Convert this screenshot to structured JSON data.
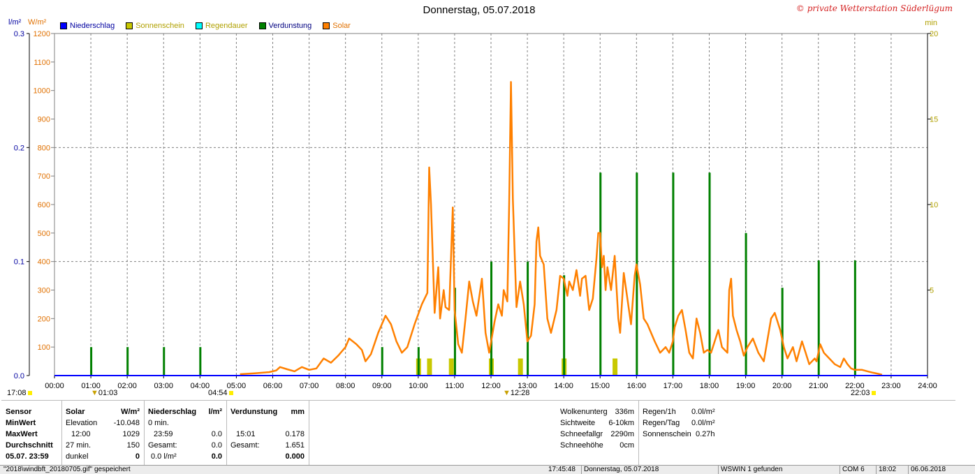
{
  "title": "Donnerstag, 05.07.2018",
  "watermark": "© private Wetterstation Süderlügum",
  "units": {
    "left_precip": "l/m²",
    "left_solar": "W/m²",
    "right_min": "min"
  },
  "legend": [
    {
      "label": "Niederschlag",
      "color": "#0000ff",
      "text_color": "#0000a0"
    },
    {
      "label": "Sonnenschein",
      "color": "#c8c800",
      "text_color": "#b0a000"
    },
    {
      "label": "Regendauer",
      "color": "#00ffff",
      "text_color": "#b0a000"
    },
    {
      "label": "Verdunstung",
      "color": "#008000",
      "text_color": "#000080"
    },
    {
      "label": "Solar",
      "color": "#ff8000",
      "text_color": "#e07000"
    }
  ],
  "markers": {
    "sunrise_left": "17:08",
    "sunrise": "04:54",
    "moon1": "01:03",
    "moon2": "12:28",
    "sunset": "22:03"
  },
  "chart_data": {
    "type": "line",
    "x_ticks": [
      "00:00",
      "01:00",
      "02:00",
      "03:00",
      "04:00",
      "05:00",
      "06:00",
      "07:00",
      "08:00",
      "09:00",
      "10:00",
      "11:00",
      "12:00",
      "13:00",
      "14:00",
      "15:00",
      "16:00",
      "17:00",
      "18:00",
      "19:00",
      "20:00",
      "21:00",
      "22:00",
      "23:00",
      "24:00"
    ],
    "xlim": [
      0,
      24
    ],
    "y_axes": {
      "precip": {
        "ylim": [
          0,
          0.3
        ],
        "ticks": [
          "0.0",
          "0.1",
          "0.2",
          "0.3"
        ],
        "tick_values": [
          0,
          0.1,
          0.2,
          0.3
        ],
        "color": "#0000a0"
      },
      "solar": {
        "ylim": [
          0,
          1200
        ],
        "ticks": [
          100,
          200,
          300,
          400,
          500,
          600,
          700,
          800,
          900,
          1000,
          1100,
          1200
        ],
        "color": "#e07000"
      },
      "minutes": {
        "ylim": [
          0,
          20
        ],
        "ticks": [
          5,
          10,
          15,
          20
        ],
        "color": "#b0a000"
      }
    },
    "series": [
      {
        "name": "Solar",
        "color": "#ff8000",
        "points": [
          [
            5.1,
            5
          ],
          [
            5.5,
            8
          ],
          [
            5.9,
            12
          ],
          [
            6.1,
            18
          ],
          [
            6.2,
            30
          ],
          [
            6.4,
            22
          ],
          [
            6.6,
            15
          ],
          [
            6.8,
            30
          ],
          [
            7.0,
            20
          ],
          [
            7.2,
            25
          ],
          [
            7.4,
            60
          ],
          [
            7.6,
            45
          ],
          [
            7.8,
            70
          ],
          [
            8.0,
            100
          ],
          [
            8.1,
            130
          ],
          [
            8.3,
            110
          ],
          [
            8.45,
            90
          ],
          [
            8.55,
            50
          ],
          [
            8.7,
            75
          ],
          [
            8.9,
            150
          ],
          [
            9.1,
            210
          ],
          [
            9.25,
            180
          ],
          [
            9.4,
            120
          ],
          [
            9.55,
            80
          ],
          [
            9.7,
            100
          ],
          [
            9.9,
            180
          ],
          [
            10.1,
            250
          ],
          [
            10.25,
            290
          ],
          [
            10.3,
            730
          ],
          [
            10.35,
            600
          ],
          [
            10.45,
            220
          ],
          [
            10.55,
            380
          ],
          [
            10.6,
            200
          ],
          [
            10.7,
            300
          ],
          [
            10.75,
            240
          ],
          [
            10.85,
            230
          ],
          [
            10.95,
            590
          ],
          [
            11.0,
            230
          ],
          [
            11.1,
            110
          ],
          [
            11.2,
            80
          ],
          [
            11.3,
            200
          ],
          [
            11.4,
            330
          ],
          [
            11.5,
            260
          ],
          [
            11.6,
            210
          ],
          [
            11.75,
            340
          ],
          [
            11.85,
            150
          ],
          [
            11.95,
            80
          ],
          [
            12.1,
            190
          ],
          [
            12.2,
            250
          ],
          [
            12.3,
            210
          ],
          [
            12.35,
            300
          ],
          [
            12.45,
            260
          ],
          [
            12.5,
            600
          ],
          [
            12.55,
            1030
          ],
          [
            12.6,
            620
          ],
          [
            12.7,
            240
          ],
          [
            12.8,
            330
          ],
          [
            12.9,
            250
          ],
          [
            13.0,
            120
          ],
          [
            13.1,
            140
          ],
          [
            13.2,
            250
          ],
          [
            13.25,
            470
          ],
          [
            13.3,
            520
          ],
          [
            13.35,
            420
          ],
          [
            13.45,
            390
          ],
          [
            13.55,
            200
          ],
          [
            13.65,
            150
          ],
          [
            13.8,
            230
          ],
          [
            13.9,
            350
          ],
          [
            14.0,
            340
          ],
          [
            14.1,
            280
          ],
          [
            14.15,
            330
          ],
          [
            14.25,
            300
          ],
          [
            14.35,
            370
          ],
          [
            14.45,
            280
          ],
          [
            14.5,
            340
          ],
          [
            14.6,
            350
          ],
          [
            14.7,
            230
          ],
          [
            14.8,
            270
          ],
          [
            14.9,
            410
          ],
          [
            14.95,
            500
          ],
          [
            15.0,
            500
          ],
          [
            15.05,
            380
          ],
          [
            15.1,
            420
          ],
          [
            15.15,
            300
          ],
          [
            15.2,
            380
          ],
          [
            15.3,
            300
          ],
          [
            15.4,
            420
          ],
          [
            15.5,
            200
          ],
          [
            15.55,
            150
          ],
          [
            15.65,
            360
          ],
          [
            15.75,
            270
          ],
          [
            15.85,
            180
          ],
          [
            15.95,
            350
          ],
          [
            16.0,
            390
          ],
          [
            16.1,
            320
          ],
          [
            16.2,
            200
          ],
          [
            16.3,
            180
          ],
          [
            16.5,
            120
          ],
          [
            16.65,
            80
          ],
          [
            16.8,
            100
          ],
          [
            16.9,
            80
          ],
          [
            17.0,
            120
          ],
          [
            17.05,
            170
          ],
          [
            17.15,
            210
          ],
          [
            17.25,
            230
          ],
          [
            17.35,
            160
          ],
          [
            17.45,
            80
          ],
          [
            17.55,
            60
          ],
          [
            17.65,
            200
          ],
          [
            17.75,
            150
          ],
          [
            17.85,
            80
          ],
          [
            17.95,
            90
          ],
          [
            18.05,
            80
          ],
          [
            18.15,
            120
          ],
          [
            18.25,
            160
          ],
          [
            18.35,
            100
          ],
          [
            18.5,
            80
          ],
          [
            18.55,
            300
          ],
          [
            18.6,
            340
          ],
          [
            18.65,
            210
          ],
          [
            18.75,
            160
          ],
          [
            18.85,
            120
          ],
          [
            18.95,
            70
          ],
          [
            19.05,
            100
          ],
          [
            19.2,
            130
          ],
          [
            19.35,
            80
          ],
          [
            19.5,
            50
          ],
          [
            19.7,
            200
          ],
          [
            19.8,
            220
          ],
          [
            19.95,
            160
          ],
          [
            20.05,
            100
          ],
          [
            20.15,
            60
          ],
          [
            20.3,
            100
          ],
          [
            20.4,
            50
          ],
          [
            20.55,
            120
          ],
          [
            20.65,
            80
          ],
          [
            20.75,
            40
          ],
          [
            20.9,
            60
          ],
          [
            20.95,
            50
          ],
          [
            21.05,
            110
          ],
          [
            21.15,
            80
          ],
          [
            21.3,
            60
          ],
          [
            21.45,
            40
          ],
          [
            21.6,
            30
          ],
          [
            21.7,
            60
          ],
          [
            21.8,
            40
          ],
          [
            21.9,
            25
          ],
          [
            22.0,
            20
          ],
          [
            22.2,
            20
          ],
          [
            22.35,
            15
          ],
          [
            22.5,
            10
          ],
          [
            22.65,
            6
          ],
          [
            22.75,
            3
          ]
        ]
      },
      {
        "name": "Verdunstung",
        "color": "#008000",
        "points": [
          [
            1.0,
            0.025
          ],
          [
            2.0,
            0.025
          ],
          [
            3.0,
            0.025
          ],
          [
            4.0,
            0.025
          ],
          [
            5.0,
            0
          ],
          [
            6.0,
            0
          ],
          [
            7.0,
            0
          ],
          [
            8.0,
            0
          ],
          [
            9.0,
            0.025
          ],
          [
            10.0,
            0.025
          ],
          [
            11.0,
            0.077
          ],
          [
            12.0,
            0.1
          ],
          [
            13.0,
            0.1
          ],
          [
            14.0,
            0.088
          ],
          [
            15.0,
            0.178
          ],
          [
            16.0,
            0.178
          ],
          [
            17.0,
            0.178
          ],
          [
            18.0,
            0.178
          ],
          [
            19.0,
            0.125
          ],
          [
            20.0,
            0.077
          ],
          [
            21.0,
            0.101
          ],
          [
            22.0,
            0.101
          ]
        ]
      },
      {
        "name": "Sonnenschein",
        "color": "#c8c800",
        "points": [
          [
            10.0,
            1
          ],
          [
            10.3,
            1
          ],
          [
            10.9,
            1
          ],
          [
            12.0,
            1
          ],
          [
            12.8,
            1
          ],
          [
            14.0,
            1
          ],
          [
            15.4,
            1
          ]
        ]
      },
      {
        "name": "Niederschlag",
        "color": "#0000ff",
        "points": [
          [
            0,
            0
          ],
          [
            24,
            0
          ]
        ]
      }
    ]
  },
  "panel": {
    "sensor": {
      "header": "Sensor",
      "rows": [
        "MinWert",
        "MaxWert",
        "Durchschnitt",
        "05.07. 23:59"
      ]
    },
    "solar": {
      "header": "Solar",
      "unit": "W/m²",
      "rows": [
        {
          "label": "Elevation",
          "value": "-10.048"
        },
        {
          "label": "12:00",
          "value": "1029"
        },
        {
          "label": "27 min.",
          "value": "150"
        },
        {
          "label": "dunkel",
          "value": "0"
        }
      ]
    },
    "precip": {
      "header": "Niederschlag",
      "unit": "l/m²",
      "rows": [
        {
          "label": "0 min.",
          "value": ""
        },
        {
          "label": "23:59",
          "value": "0.0"
        },
        {
          "label": "Gesamt:",
          "value": "0.0"
        },
        {
          "label": "0.0 l/m²",
          "value": "0.0"
        }
      ]
    },
    "evap": {
      "header": "Verdunstung",
      "unit": "mm",
      "rows": [
        {
          "label": "",
          "value": ""
        },
        {
          "label": "15:01",
          "value": "0.178"
        },
        {
          "label": "Gesamt:",
          "value": "1.651"
        },
        {
          "label": "",
          "value": "0.000"
        }
      ]
    },
    "conditions": [
      {
        "label": "Wolkenunterg",
        "value": "336m"
      },
      {
        "label": "Sichtweite",
        "value": "6-10km"
      },
      {
        "label": "Schneefallgr",
        "value": "2290m"
      },
      {
        "label": "Schneehöhe",
        "value": "0cm"
      }
    ],
    "rain": [
      {
        "label": "Regen/1h",
        "value": "0.0l/m²"
      },
      {
        "label": "Regen/Tag",
        "value": "0.0l/m²"
      },
      {
        "label": "Sonnenschein",
        "value": "0.27h"
      }
    ]
  },
  "status_bar": {
    "file": "\"2018\\windbft_20180705.gif\"  gespeichert",
    "time": "17:45:48",
    "date": "Donnerstag, 05.07.2018",
    "wswin": "WSWIN 1 gefunden",
    "com": "COM 6",
    "clock": "18:02",
    "today": "06.06.2018"
  }
}
